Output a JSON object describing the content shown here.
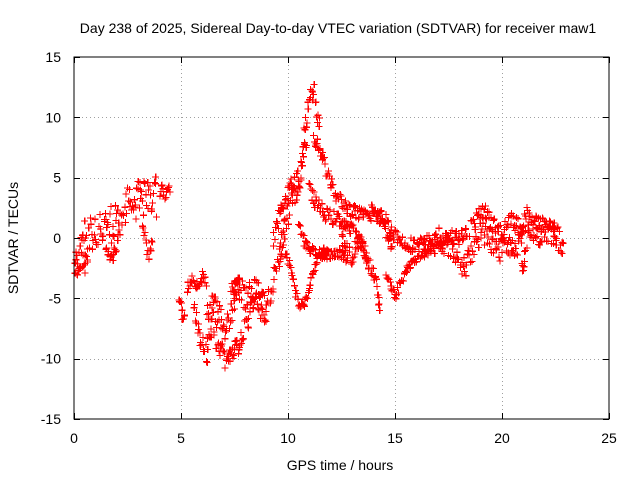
{
  "chart_data": {
    "type": "scatter",
    "title": "Day 238 of 2025, Sidereal Day-to-day VTEC variation (SDTVAR) for receiver maw1",
    "xlabel": "GPS time / hours",
    "ylabel": "SDTVAR / TECUs",
    "xlim": [
      0,
      25
    ],
    "ylim": [
      -15,
      15
    ],
    "x_ticks": [
      0,
      5,
      10,
      15,
      20,
      25
    ],
    "y_ticks": [
      -15,
      -10,
      -5,
      0,
      5,
      10,
      15
    ],
    "x_tick_labels": [
      "0",
      "5",
      "10",
      "15",
      "20",
      "25"
    ],
    "y_tick_labels": [
      "-15",
      "-10",
      "-5",
      "0",
      "5",
      "10",
      "15"
    ],
    "grid": true,
    "marker": "plus",
    "color": "#ff0000",
    "series": [
      {
        "name": "maw1",
        "segments": [
          {
            "path": [
              [
                0.0,
                -1.5
              ],
              [
                0.15,
                -2.5
              ],
              [
                0.3,
                -1.0
              ],
              [
                0.45,
                0.5
              ],
              [
                0.6,
                -0.5
              ],
              [
                0.75,
                0.8
              ],
              [
                0.9,
                -0.2
              ],
              [
                1.0,
                0.6
              ],
              [
                1.2,
                1.2
              ],
              [
                1.4,
                0.3
              ],
              [
                1.6,
                1.8
              ],
              [
                1.8,
                0.9
              ],
              [
                2.0,
                2.2
              ],
              [
                2.2,
                1.2
              ],
              [
                2.4,
                2.6
              ],
              [
                2.6,
                3.4
              ],
              [
                2.8,
                2.0
              ],
              [
                3.0,
                3.8
              ],
              [
                3.2,
                2.8
              ],
              [
                3.4,
                4.0
              ],
              [
                3.6,
                3.0
              ],
              [
                3.8,
                4.2
              ],
              [
                3.9,
                2.5
              ]
            ],
            "spread": 1.5
          },
          {
            "path": [
              [
                0.05,
                -2.0
              ],
              [
                0.2,
                -3.0
              ],
              [
                0.35,
                -1.8
              ],
              [
                0.5,
                -2.5
              ],
              [
                0.7,
                -1.2
              ]
            ],
            "spread": 0.6
          },
          {
            "path": [
              [
                1.5,
                -0.5
              ],
              [
                1.7,
                -2.0
              ],
              [
                1.9,
                -1.2
              ],
              [
                2.1,
                0.0
              ]
            ],
            "spread": 0.5
          },
          {
            "path": [
              [
                3.2,
                1.0
              ],
              [
                3.4,
                -0.5
              ],
              [
                3.5,
                -1.5
              ],
              [
                3.7,
                0.5
              ]
            ],
            "spread": 0.6
          },
          {
            "path": [
              [
                4.0,
                3.8
              ],
              [
                4.1,
                4.2
              ],
              [
                4.25,
                3.2
              ],
              [
                4.4,
                4.2
              ],
              [
                4.5,
                3.5
              ]
            ],
            "spread": 0.4
          },
          {
            "path": [
              [
                4.9,
                -5.0
              ],
              [
                5.0,
                -5.8
              ],
              [
                5.1,
                -6.5
              ],
              [
                5.2,
                -7.0
              ]
            ],
            "spread": 0.5
          },
          {
            "path": [
              [
                5.3,
                -4.0
              ],
              [
                5.5,
                -3.2
              ],
              [
                5.8,
                -4.0
              ],
              [
                6.0,
                -3.0
              ],
              [
                6.2,
                -4.2
              ]
            ],
            "spread": 0.5
          },
          {
            "path": [
              [
                5.6,
                -6.0
              ],
              [
                5.8,
                -7.5
              ],
              [
                6.0,
                -9.0
              ],
              [
                6.2,
                -9.6
              ],
              [
                6.3,
                -8.0
              ],
              [
                6.5,
                -7.0
              ],
              [
                6.7,
                -8.5
              ],
              [
                6.9,
                -9.5
              ],
              [
                7.1,
                -10.0
              ],
              [
                7.3,
                -9.6
              ],
              [
                7.5,
                -9.3
              ],
              [
                7.7,
                -8.8
              ],
              [
                7.9,
                -8.0
              ],
              [
                8.1,
                -7.0
              ],
              [
                8.3,
                -6.0
              ],
              [
                8.5,
                -5.0
              ],
              [
                8.8,
                -6.5
              ],
              [
                9.0,
                -7.5
              ]
            ],
            "spread": 0.9
          },
          {
            "path": [
              [
                6.2,
                -6.5
              ],
              [
                6.5,
                -5.5
              ],
              [
                6.8,
                -6.5
              ],
              [
                7.0,
                -7.5
              ],
              [
                7.3,
                -6.8
              ],
              [
                7.5,
                -5.0
              ],
              [
                7.8,
                -4.0
              ],
              [
                8.0,
                -5.2
              ],
              [
                8.3,
                -4.2
              ],
              [
                8.6,
                -4.5
              ],
              [
                8.9,
                -5.5
              ],
              [
                9.1,
                -5.0
              ],
              [
                9.3,
                -3.5
              ],
              [
                9.5,
                -2.5
              ],
              [
                9.7,
                -1.5
              ],
              [
                9.9,
                1.0
              ],
              [
                10.0,
                2.0
              ],
              [
                10.2,
                3.2
              ],
              [
                10.35,
                4.2
              ],
              [
                10.5,
                4.0
              ],
              [
                10.6,
                5.5
              ],
              [
                10.7,
                7.0
              ],
              [
                10.8,
                9.0
              ],
              [
                10.9,
                10.5
              ],
              [
                11.0,
                11.5
              ],
              [
                11.1,
                12.0
              ],
              [
                11.2,
                12.4
              ],
              [
                11.3,
                11.5
              ],
              [
                11.4,
                10.0
              ],
              [
                11.5,
                9.0
              ]
            ],
            "spread": 1.0
          },
          {
            "path": [
              [
                7.5,
                -3.5
              ],
              [
                7.7,
                -3.0
              ],
              [
                7.6,
                -4.5
              ],
              [
                7.3,
                -4.0
              ]
            ],
            "spread": 0.4
          },
          {
            "path": [
              [
                9.6,
                -1.0
              ],
              [
                9.7,
                0.3
              ],
              [
                9.8,
                1.2
              ],
              [
                9.9,
                2.0
              ]
            ],
            "spread": 0.4
          },
          {
            "path": [
              [
                9.3,
                -0.5
              ],
              [
                9.5,
                1.0
              ],
              [
                9.7,
                2.5
              ],
              [
                9.9,
                3.5
              ],
              [
                10.1,
                4.2
              ],
              [
                10.3,
                4.5
              ],
              [
                10.5,
                5.0
              ],
              [
                10.7,
                6.5
              ],
              [
                10.8,
                7.5
              ],
              [
                10.9,
                8.8
              ]
            ],
            "spread": 0.7
          },
          {
            "path": [
              [
                9.9,
                -1.0
              ],
              [
                10.1,
                -2.5
              ],
              [
                10.3,
                -4.0
              ],
              [
                10.5,
                -5.3
              ],
              [
                10.7,
                -5.8
              ],
              [
                10.9,
                -5.0
              ],
              [
                11.1,
                -3.5
              ],
              [
                11.3,
                -2.0
              ],
              [
                11.5,
                -1.5
              ],
              [
                11.8,
                -1.4
              ],
              [
                12.1,
                -1.5
              ],
              [
                12.4,
                -1.3
              ],
              [
                12.7,
                -1.6
              ],
              [
                12.8,
                -1.2
              ]
            ],
            "spread": 0.4
          },
          {
            "path": [
              [
                10.5,
                1.0
              ],
              [
                10.7,
                0.0
              ],
              [
                10.9,
                -0.8
              ],
              [
                11.0,
                -1.0
              ],
              [
                11.3,
                -1.0
              ],
              [
                11.6,
                -1.3
              ],
              [
                11.9,
                -0.9
              ]
            ],
            "spread": 0.4
          },
          {
            "path": [
              [
                11.2,
                8.2
              ],
              [
                11.4,
                7.8
              ],
              [
                11.6,
                6.8
              ],
              [
                11.8,
                5.5
              ],
              [
                12.0,
                4.5
              ],
              [
                12.2,
                3.6
              ],
              [
                12.5,
                3.0
              ],
              [
                12.8,
                2.5
              ],
              [
                13.2,
                2.0
              ],
              [
                13.6,
                1.8
              ],
              [
                14.0,
                2.0
              ],
              [
                14.3,
                1.8
              ],
              [
                14.6,
                1.5
              ],
              [
                14.8,
                0.8
              ],
              [
                15.0,
                0.3
              ],
              [
                15.3,
                -0.3
              ],
              [
                15.6,
                -0.5
              ],
              [
                16.0,
                -0.6
              ],
              [
                16.4,
                -0.4
              ],
              [
                16.8,
                -0.2
              ],
              [
                17.2,
                -0.3
              ],
              [
                17.6,
                0.0
              ],
              [
                18.0,
                0.3
              ],
              [
                18.4,
                0.2
              ]
            ],
            "spread": 0.6
          },
          {
            "path": [
              [
                11.0,
                4.0
              ],
              [
                11.3,
                3.0
              ],
              [
                11.6,
                2.2
              ],
              [
                11.9,
                1.8
              ],
              [
                12.2,
                1.6
              ],
              [
                12.6,
                1.3
              ],
              [
                13.0,
                0.6
              ],
              [
                13.3,
                -0.2
              ],
              [
                13.6,
                -1.2
              ],
              [
                13.9,
                -2.5
              ],
              [
                14.1,
                -3.5
              ],
              [
                14.3,
                -5.5
              ],
              [
                14.2,
                -6.4
              ]
            ],
            "spread": 0.6
          },
          {
            "path": [
              [
                12.5,
                0.0
              ],
              [
                12.8,
                -1.0
              ],
              [
                13.0,
                -2.0
              ],
              [
                13.2,
                -1.0
              ],
              [
                13.4,
                0.5
              ],
              [
                13.6,
                -1.5
              ],
              [
                13.8,
                -2.2
              ]
            ],
            "spread": 0.5
          },
          {
            "path": [
              [
                13.9,
                2.8
              ],
              [
                14.1,
                2.2
              ],
              [
                14.3,
                1.5
              ],
              [
                14.5,
                0.8
              ],
              [
                14.7,
                0.0
              ],
              [
                14.9,
                -0.8
              ]
            ],
            "spread": 0.5
          },
          {
            "path": [
              [
                14.6,
                -3.0
              ],
              [
                14.8,
                -4.0
              ],
              [
                15.0,
                -5.0
              ],
              [
                15.2,
                -4.0
              ],
              [
                15.5,
                -2.8
              ],
              [
                15.8,
                -2.0
              ],
              [
                16.1,
                -1.5
              ],
              [
                16.4,
                -1.2
              ],
              [
                16.7,
                -1.0
              ],
              [
                17.0,
                -0.8
              ],
              [
                17.3,
                -0.5
              ]
            ],
            "spread": 0.4
          },
          {
            "path": [
              [
                17.0,
                0.3
              ],
              [
                17.5,
                -0.8
              ],
              [
                18.0,
                -1.5
              ],
              [
                18.3,
                -2.5
              ],
              [
                18.6,
                -1.0
              ],
              [
                19.0,
                0.5
              ],
              [
                19.4,
                0.0
              ],
              [
                19.8,
                -1.0
              ],
              [
                20.2,
                -0.8
              ],
              [
                20.6,
                -0.5
              ],
              [
                21.0,
                -0.3
              ],
              [
                21.4,
                0.5
              ],
              [
                21.8,
                0.3
              ],
              [
                22.2,
                0.5
              ],
              [
                22.6,
                0.0
              ],
              [
                22.9,
                -0.6
              ]
            ],
            "spread": 1.0
          },
          {
            "path": [
              [
                18.5,
                0.8
              ],
              [
                18.8,
                1.5
              ],
              [
                19.2,
                2.3
              ],
              [
                19.6,
                1.0
              ],
              [
                20.0,
                0.5
              ],
              [
                20.4,
                1.8
              ],
              [
                20.8,
                0.8
              ],
              [
                21.2,
                2.0
              ],
              [
                21.5,
                1.5
              ],
              [
                21.8,
                1.0
              ],
              [
                22.2,
                0.8
              ],
              [
                22.6,
                0.4
              ]
            ],
            "spread": 0.7
          },
          {
            "path": [
              [
                20.9,
                -2.0
              ],
              [
                21.0,
                -2.8
              ],
              [
                21.1,
                -1.5
              ]
            ],
            "spread": 0.3
          }
        ]
      }
    ]
  }
}
